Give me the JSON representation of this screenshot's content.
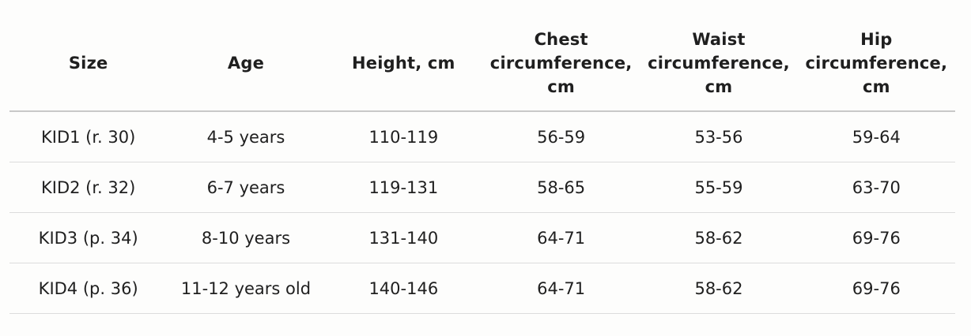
{
  "table": {
    "headers": [
      "Size",
      "Age",
      "Height, cm",
      "Chest\ncircumference,\ncm",
      "Waist\ncircumference,\ncm",
      "Hip\ncircumference,\ncm"
    ],
    "rows": [
      [
        "KID1 (r. 30)",
        "4-5 years",
        "110-119",
        "56-59",
        "53-56",
        "59-64"
      ],
      [
        "KID2 (r. 32)",
        "6-7 years",
        "119-131",
        "58-65",
        "55-59",
        "63-70"
      ],
      [
        "KID3 (p. 34)",
        "8-10 years",
        "131-140",
        "64-71",
        "58-62",
        "69-76"
      ],
      [
        "KID4 (p. 36)",
        "11-12 years old",
        "140-146",
        "64-71",
        "58-62",
        "69-76"
      ]
    ]
  }
}
